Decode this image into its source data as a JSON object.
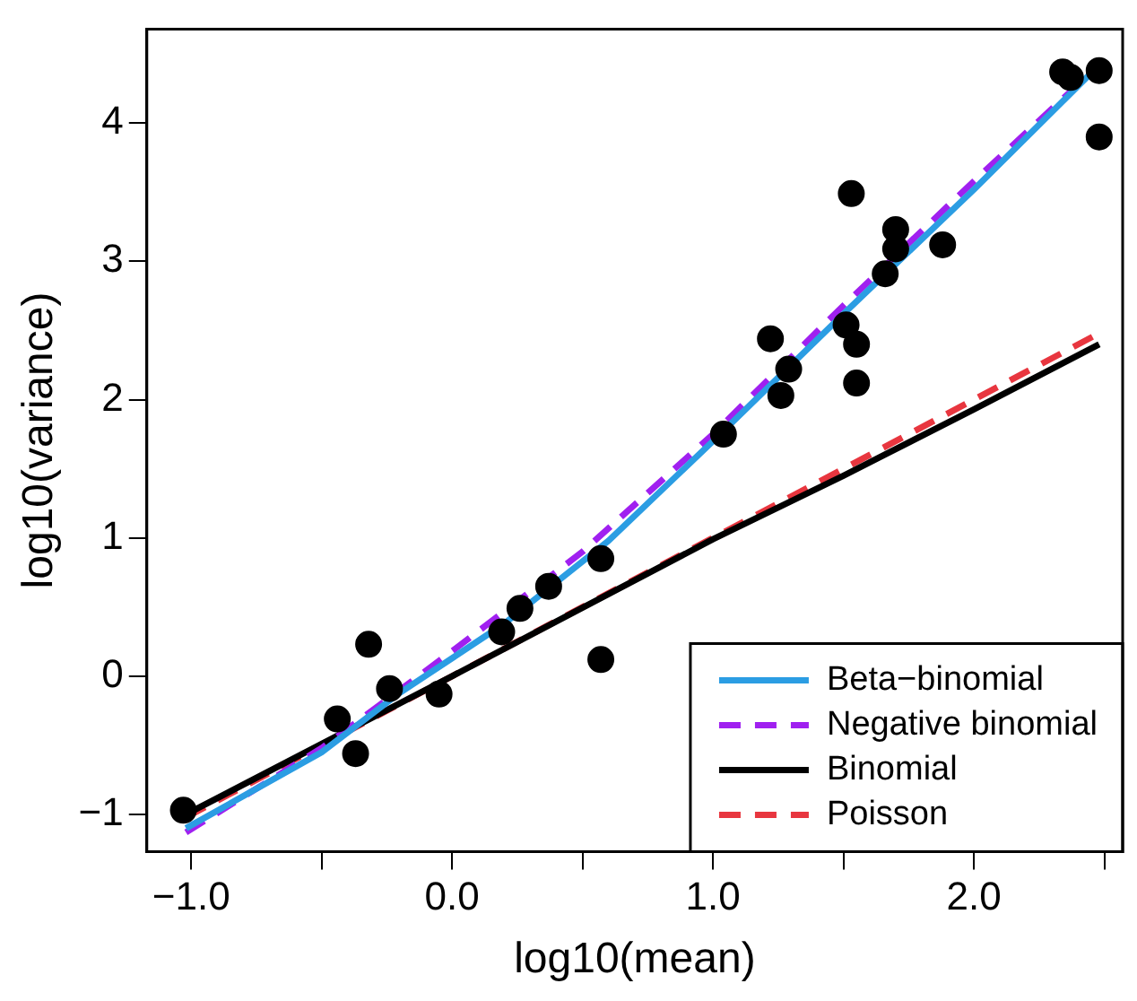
{
  "chart_data": {
    "type": "scatter",
    "xlabel": "log10(mean)",
    "ylabel": "log10(variance)",
    "xlim": [
      -1.17,
      2.57
    ],
    "ylim": [
      -1.27,
      4.68
    ],
    "xticks": [
      {
        "value": -1,
        "label": "−1.0"
      },
      {
        "value": -0.5,
        "label": null
      },
      {
        "value": 0,
        "label": "0.0"
      },
      {
        "value": 0.5,
        "label": null
      },
      {
        "value": 1,
        "label": "1.0"
      },
      {
        "value": 1.5,
        "label": null
      },
      {
        "value": 2,
        "label": "2.0"
      },
      {
        "value": 2.5,
        "label": null
      }
    ],
    "yticks": [
      {
        "value": -1,
        "label": "−1"
      },
      0,
      1,
      2,
      3,
      4
    ],
    "grid": false,
    "legend": "bottom right",
    "series": [
      {
        "type": "scatter",
        "color": "#000000",
        "marker": "circle",
        "x": [
          -1.03,
          -0.44,
          -0.37,
          -0.32,
          -0.24,
          -0.05,
          0.19,
          0.26,
          0.37,
          0.57,
          0.57,
          1.04,
          1.22,
          1.29,
          1.26,
          1.51,
          1.55,
          1.55,
          1.53,
          1.66,
          1.7,
          1.7,
          1.88,
          2.34,
          2.37,
          2.48,
          2.48
        ],
        "values": [
          -0.97,
          -0.31,
          -0.56,
          0.23,
          -0.09,
          -0.13,
          0.32,
          0.49,
          0.65,
          0.85,
          0.12,
          1.75,
          2.44,
          2.22,
          2.03,
          2.54,
          2.4,
          2.12,
          3.49,
          2.91,
          3.23,
          3.09,
          3.12,
          4.37,
          4.33,
          4.38,
          3.9
        ]
      },
      {
        "type": "line",
        "name": "Beta−binomial",
        "color": "#2b9de3",
        "line_style": "solid",
        "marker": "none",
        "x": [
          -1.02,
          -0.5,
          -0.2,
          0.2,
          0.6,
          1.0,
          1.5,
          2.0,
          2.48
        ],
        "values": [
          -1.1,
          -0.55,
          -0.12,
          0.38,
          0.98,
          1.7,
          2.62,
          3.52,
          4.42
        ]
      },
      {
        "type": "line",
        "name": "Negative binomial",
        "color": "#a020f0",
        "line_style": "dashed",
        "marker": "none",
        "x": [
          -1.02,
          -0.5,
          0,
          0.5,
          1.0,
          1.5,
          2.0,
          2.48
        ],
        "values": [
          -1.13,
          -0.52,
          0.18,
          0.9,
          1.75,
          2.68,
          3.58,
          4.42
        ]
      },
      {
        "type": "line",
        "name": "Binomial",
        "color": "#000000",
        "line_style": "solid",
        "marker": "none",
        "x": [
          -1.02,
          0,
          1,
          1.5,
          2,
          2.48
        ],
        "values": [
          -1.0,
          0,
          0.99,
          1.45,
          1.93,
          2.4
        ]
      },
      {
        "type": "line",
        "name": "Poisson",
        "color": "#e8363f",
        "line_style": "dashed",
        "marker": "none",
        "x": [
          -1.02,
          2.48
        ],
        "values": [
          -1.02,
          2.48
        ]
      }
    ]
  }
}
